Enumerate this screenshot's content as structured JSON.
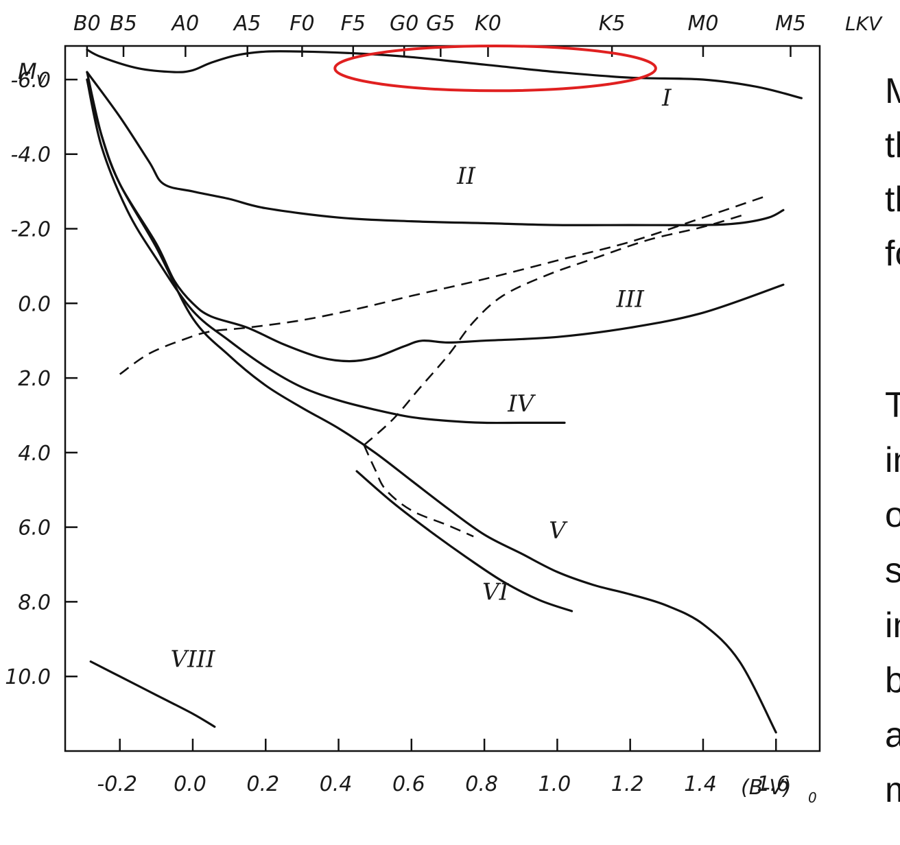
{
  "chart_data": {
    "type": "line",
    "title": "",
    "xlabel": "(B-V)",
    "xlabel_subscript": "0",
    "ylabel": "M",
    "ylabel_subscript": "V",
    "xlim": [
      -0.35,
      1.72
    ],
    "ylim": [
      -6.9,
      12.0
    ],
    "y_inverted": true,
    "x_ticks": [
      -0.2,
      0.0,
      0.2,
      0.4,
      0.6,
      0.8,
      1.0,
      1.2,
      1.4,
      1.6
    ],
    "x_tick_labels": [
      "-0.2",
      "0.0",
      "0.2",
      "0.4",
      "0.6",
      "0.8",
      "1.0",
      "1.2",
      "1.4",
      "1.6"
    ],
    "y_ticks": [
      -6,
      -4,
      -2,
      0,
      2,
      4,
      6,
      8,
      10
    ],
    "y_tick_labels": [
      "-6.0",
      "-4.0",
      "-2.0",
      "0.0",
      "2.0",
      "4.0",
      "6.0",
      "8.0",
      "10.0"
    ],
    "spectral_types": [
      {
        "label": "B0",
        "x": -0.29
      },
      {
        "label": "B5",
        "x": -0.19
      },
      {
        "label": "A0",
        "x": -0.02
      },
      {
        "label": "A5",
        "x": 0.15
      },
      {
        "label": "F0",
        "x": 0.3
      },
      {
        "label": "F5",
        "x": 0.44
      },
      {
        "label": "G0",
        "x": 0.58
      },
      {
        "label": "G5",
        "x": 0.68
      },
      {
        "label": "K0",
        "x": 0.81
      },
      {
        "label": "K5",
        "x": 1.15
      },
      {
        "label": "M0",
        "x": 1.4
      },
      {
        "label": "M5",
        "x": 1.64
      }
    ],
    "spectral_type_header": "LKV",
    "series": [
      {
        "name": "I",
        "label_pos": [
          1.3,
          -5.3
        ],
        "values": [
          [
            -0.29,
            -6.8
          ],
          [
            -0.25,
            -6.6
          ],
          [
            -0.15,
            -6.3
          ],
          [
            -0.05,
            -6.2
          ],
          [
            0.0,
            -6.25
          ],
          [
            0.05,
            -6.45
          ],
          [
            0.12,
            -6.65
          ],
          [
            0.2,
            -6.75
          ],
          [
            0.3,
            -6.75
          ],
          [
            0.45,
            -6.7
          ],
          [
            0.6,
            -6.6
          ],
          [
            0.8,
            -6.4
          ],
          [
            1.0,
            -6.2
          ],
          [
            1.2,
            -6.05
          ],
          [
            1.4,
            -6.0
          ],
          [
            1.55,
            -5.8
          ],
          [
            1.67,
            -5.5
          ]
        ]
      },
      {
        "name": "II",
        "label_pos": [
          0.75,
          -3.2
        ],
        "values": [
          [
            -0.29,
            -6.2
          ],
          [
            -0.2,
            -5.0
          ],
          [
            -0.12,
            -3.8
          ],
          [
            -0.08,
            -3.2
          ],
          [
            0.0,
            -3.0
          ],
          [
            0.1,
            -2.8
          ],
          [
            0.2,
            -2.55
          ],
          [
            0.4,
            -2.3
          ],
          [
            0.6,
            -2.2
          ],
          [
            0.8,
            -2.15
          ],
          [
            1.0,
            -2.1
          ],
          [
            1.2,
            -2.1
          ],
          [
            1.4,
            -2.1
          ],
          [
            1.5,
            -2.15
          ],
          [
            1.58,
            -2.3
          ],
          [
            1.62,
            -2.5
          ]
        ]
      },
      {
        "name": "III",
        "label_pos": [
          1.2,
          0.1
        ],
        "values": [
          [
            -0.29,
            -6.2
          ],
          [
            -0.25,
            -4.5
          ],
          [
            -0.2,
            -3.2
          ],
          [
            -0.1,
            -1.6
          ],
          [
            -0.05,
            -0.6
          ],
          [
            0.0,
            0.0
          ],
          [
            0.05,
            0.35
          ],
          [
            0.15,
            0.65
          ],
          [
            0.25,
            1.1
          ],
          [
            0.35,
            1.45
          ],
          [
            0.43,
            1.55
          ],
          [
            0.5,
            1.45
          ],
          [
            0.58,
            1.15
          ],
          [
            0.63,
            1.0
          ],
          [
            0.7,
            1.05
          ],
          [
            0.8,
            1.0
          ],
          [
            1.0,
            0.9
          ],
          [
            1.2,
            0.65
          ],
          [
            1.4,
            0.25
          ],
          [
            1.62,
            -0.5
          ]
        ]
      },
      {
        "name": "IV",
        "label_pos": [
          0.9,
          2.9
        ],
        "values": [
          [
            -0.29,
            -6.0
          ],
          [
            -0.25,
            -4.2
          ],
          [
            -0.18,
            -2.5
          ],
          [
            -0.1,
            -1.2
          ],
          [
            0.0,
            0.2
          ],
          [
            0.1,
            1.0
          ],
          [
            0.2,
            1.7
          ],
          [
            0.3,
            2.25
          ],
          [
            0.4,
            2.6
          ],
          [
            0.5,
            2.85
          ],
          [
            0.6,
            3.05
          ],
          [
            0.7,
            3.15
          ],
          [
            0.8,
            3.2
          ],
          [
            0.9,
            3.2
          ],
          [
            1.02,
            3.2
          ]
        ]
      },
      {
        "name": "V",
        "label_pos": [
          1.0,
          6.3
        ],
        "values": [
          [
            -0.29,
            -6.0
          ],
          [
            -0.25,
            -4.5
          ],
          [
            -0.2,
            -3.2
          ],
          [
            -0.1,
            -1.5
          ],
          [
            0.0,
            0.4
          ],
          [
            0.1,
            1.4
          ],
          [
            0.2,
            2.2
          ],
          [
            0.3,
            2.8
          ],
          [
            0.4,
            3.35
          ],
          [
            0.5,
            4.0
          ],
          [
            0.6,
            4.75
          ],
          [
            0.7,
            5.5
          ],
          [
            0.8,
            6.2
          ],
          [
            0.9,
            6.7
          ],
          [
            1.0,
            7.2
          ],
          [
            1.1,
            7.55
          ],
          [
            1.2,
            7.8
          ],
          [
            1.3,
            8.1
          ],
          [
            1.4,
            8.6
          ],
          [
            1.5,
            9.6
          ],
          [
            1.6,
            11.5
          ]
        ]
      },
      {
        "name": "VI",
        "label_pos": [
          0.83,
          7.95
        ],
        "values": [
          [
            0.45,
            4.5
          ],
          [
            0.55,
            5.35
          ],
          [
            0.65,
            6.1
          ],
          [
            0.75,
            6.8
          ],
          [
            0.85,
            7.45
          ],
          [
            0.95,
            7.95
          ],
          [
            1.04,
            8.25
          ]
        ]
      },
      {
        "name": "VIII",
        "label_pos": [
          0.0,
          9.75
        ],
        "values": [
          [
            -0.28,
            9.6
          ],
          [
            -0.2,
            10.0
          ],
          [
            -0.1,
            10.5
          ],
          [
            0.0,
            11.0
          ],
          [
            0.06,
            11.35
          ]
        ]
      }
    ],
    "dashed_series": [
      {
        "values": [
          [
            -0.2,
            1.9
          ],
          [
            -0.12,
            1.35
          ],
          [
            -0.02,
            0.95
          ],
          [
            0.05,
            0.75
          ],
          [
            0.15,
            0.65
          ],
          [
            0.3,
            0.45
          ],
          [
            0.45,
            0.15
          ],
          [
            0.6,
            -0.2
          ],
          [
            0.8,
            -0.65
          ],
          [
            1.0,
            -1.15
          ],
          [
            1.2,
            -1.65
          ],
          [
            1.4,
            -2.3
          ],
          [
            1.58,
            -2.9
          ]
        ]
      },
      {
        "values": [
          [
            0.47,
            3.8
          ],
          [
            0.55,
            3.1
          ],
          [
            0.62,
            2.3
          ],
          [
            0.7,
            1.4
          ],
          [
            0.77,
            0.5
          ],
          [
            0.85,
            -0.2
          ],
          [
            0.97,
            -0.75
          ],
          [
            1.1,
            -1.2
          ],
          [
            1.25,
            -1.7
          ],
          [
            1.4,
            -2.05
          ],
          [
            1.52,
            -2.4
          ]
        ]
      },
      {
        "values": [
          [
            0.47,
            3.8
          ],
          [
            0.5,
            4.45
          ],
          [
            0.53,
            5.0
          ],
          [
            0.6,
            5.55
          ],
          [
            0.7,
            5.95
          ],
          [
            0.77,
            6.25
          ]
        ]
      }
    ],
    "highlight": {
      "cx": 0.83,
      "cy": -6.3,
      "rx": 0.44,
      "ry": 0.6,
      "color": "#e02020"
    },
    "line_color": "#111111"
  },
  "slide": {
    "text_lines": [
      "M",
      "th",
      "th",
      "fo",
      "",
      "T",
      "in",
      "o",
      "s",
      "in",
      "b",
      "a",
      "m"
    ]
  }
}
